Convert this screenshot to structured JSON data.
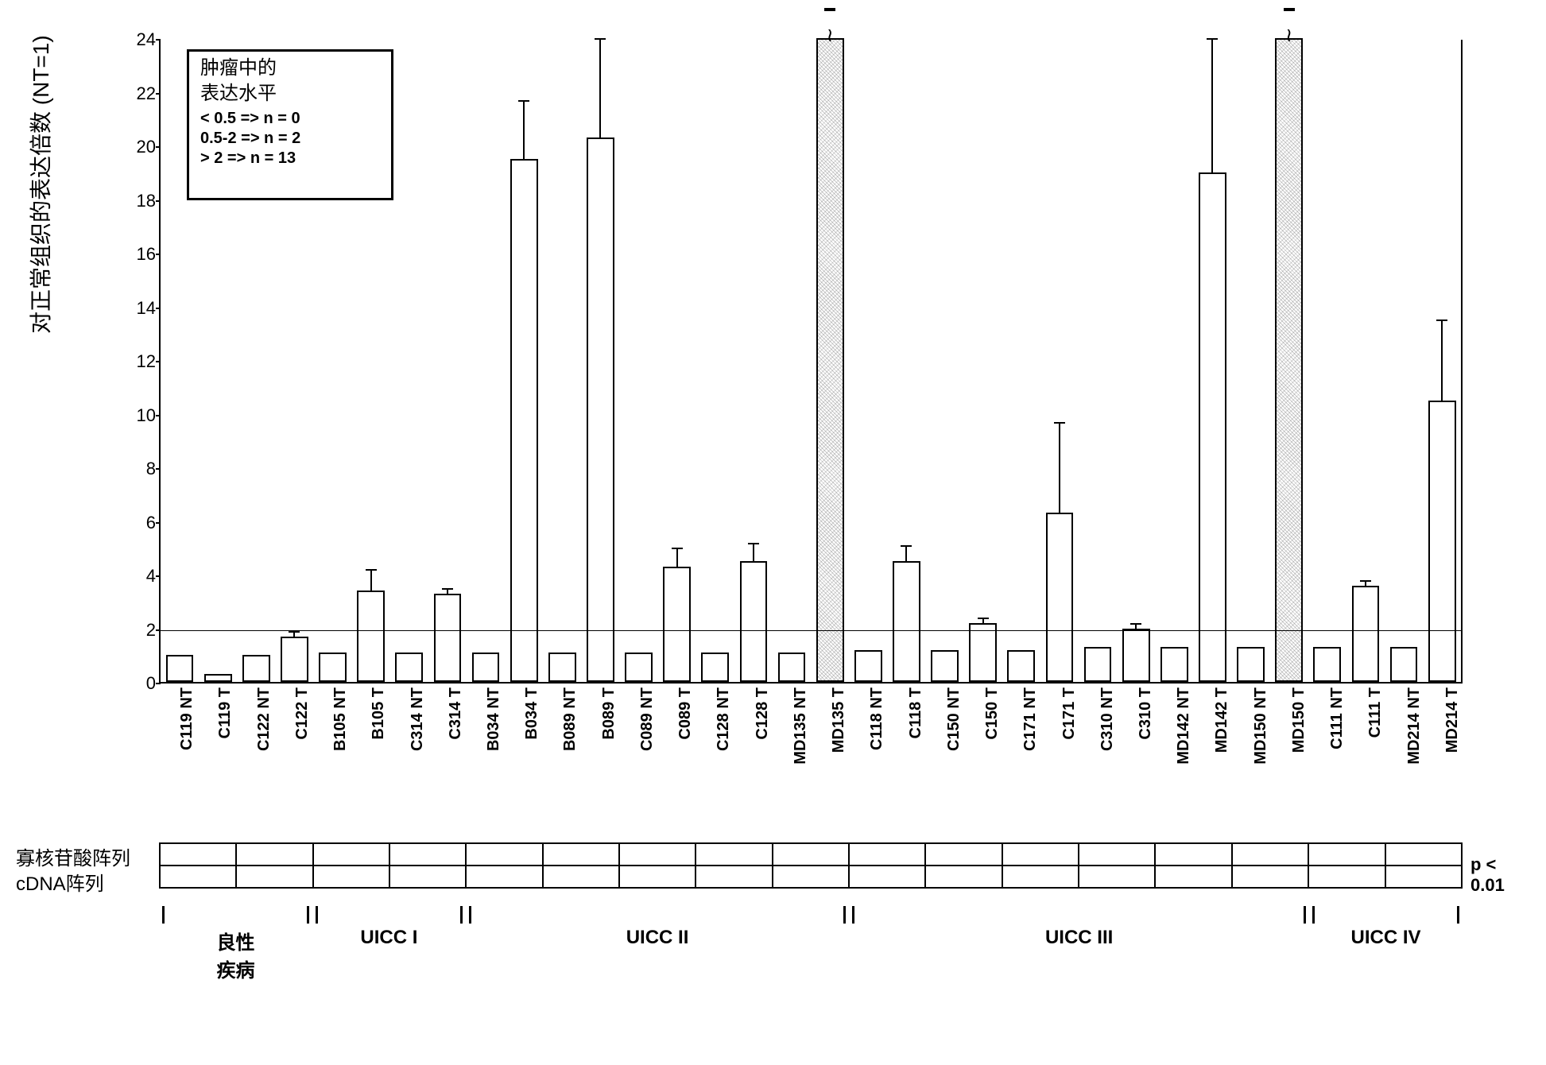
{
  "chart": {
    "type": "bar",
    "ylabel": "对正常组织的表达倍数 (NT=1)",
    "ylabel_fontsize": 28,
    "ylim": [
      0,
      24
    ],
    "ytick_step": 2,
    "grid_color": "#000000",
    "background_color": "#ffffff",
    "bar_color": "#ffffff",
    "bar_border": "#000000",
    "label_fontsize": 20,
    "tick_fontsize": 22,
    "categories": [
      "C119 NT",
      "C119 T",
      "C122 NT",
      "C122 T",
      "B105 NT",
      "B105 T",
      "C314 NT",
      "C314 T",
      "B034 NT",
      "B034 T",
      "B089 NT",
      "B089 T",
      "C089 NT",
      "C089 T",
      "C128 NT",
      "C128 T",
      "MD135 NT",
      "MD135 T",
      "C118 NT",
      "C118 T",
      "C150 NT",
      "C150 T",
      "C171 NT",
      "C171 T",
      "C310 NT",
      "C310 T",
      "MD142 NT",
      "MD142 T",
      "MD150 NT",
      "MD150 T",
      "C111 NT",
      "C111 T",
      "MD214 NT",
      "MD214 T"
    ],
    "values": [
      1.0,
      0.3,
      1.0,
      1.7,
      1.1,
      3.4,
      1.1,
      3.3,
      1.1,
      19.5,
      1.1,
      20.3,
      1.1,
      4.3,
      1.1,
      4.5,
      1.1,
      28.0,
      1.2,
      4.5,
      1.2,
      2.2,
      1.2,
      6.3,
      1.3,
      2.0,
      1.3,
      19.0,
      1.3,
      28.0,
      1.3,
      3.6,
      1.3,
      10.5
    ],
    "err_low": [
      0,
      0,
      0,
      0.2,
      0,
      0.4,
      0,
      0.2,
      0,
      2.0,
      0,
      3.5,
      0,
      0.4,
      0,
      0.6,
      0,
      3.0,
      0,
      0.6,
      0,
      0.2,
      0,
      2.3,
      0,
      0.2,
      0,
      9.0,
      0,
      3.0,
      0,
      0.2,
      0,
      2.2
    ],
    "err_high": [
      0,
      0,
      0,
      0.2,
      0,
      0.8,
      0,
      0.2,
      0,
      2.2,
      0,
      4.0,
      0,
      0.7,
      0,
      0.7,
      0,
      3.0,
      0,
      0.6,
      0,
      0.2,
      0,
      3.4,
      0,
      0.2,
      0,
      5.0,
      0,
      3.0,
      0,
      0.2,
      0,
      3.0
    ],
    "clipped": [
      false,
      false,
      false,
      false,
      false,
      false,
      false,
      false,
      false,
      false,
      false,
      false,
      false,
      false,
      false,
      false,
      false,
      true,
      false,
      false,
      false,
      false,
      false,
      false,
      false,
      false,
      false,
      false,
      false,
      true,
      false,
      false,
      false,
      false
    ],
    "noisy": [
      false,
      false,
      false,
      false,
      false,
      false,
      false,
      false,
      false,
      false,
      false,
      false,
      false,
      false,
      false,
      false,
      false,
      true,
      false,
      false,
      false,
      false,
      false,
      false,
      false,
      false,
      false,
      false,
      false,
      true,
      false,
      false,
      false,
      false
    ]
  },
  "legend": {
    "title_line1": "肿瘤中的",
    "title_line2": "表达水平",
    "rows": [
      "< 0.5  =>  n = 0",
      "0.5-2  =>  n = 2",
      "> 2    =>  n = 13"
    ]
  },
  "arrays": {
    "row1_label": "寡核苷酸阵列",
    "row2_label": "cDNA阵列",
    "pair_count": 17,
    "p_value": "p < 0.01"
  },
  "stages": {
    "items": [
      {
        "label": "良性\n疾病",
        "start": 0,
        "end": 4
      },
      {
        "label": "UICC I",
        "start": 4,
        "end": 8
      },
      {
        "label": "UICC II",
        "start": 8,
        "end": 18
      },
      {
        "label": "UICC III",
        "start": 18,
        "end": 30
      },
      {
        "label": "UICC IV",
        "start": 30,
        "end": 34
      }
    ]
  }
}
